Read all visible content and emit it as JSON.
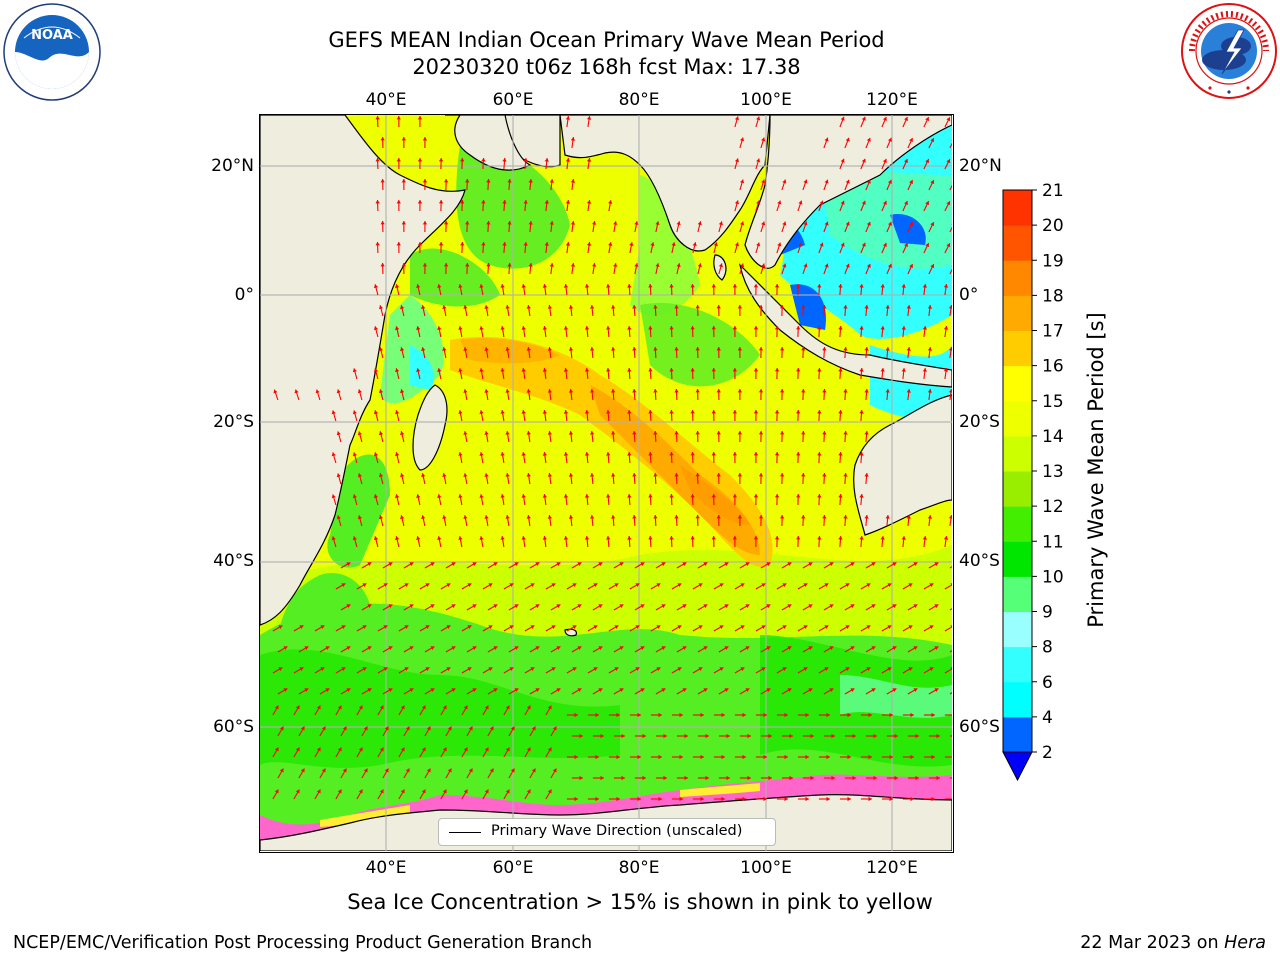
{
  "header": {
    "title_line1": "GEFS MEAN Indian Ocean Primary Wave Mean Period",
    "title_line2": "20230320 t06z 168h fcst   Max: 17.38"
  },
  "logos": {
    "left": {
      "icon": "noaa-logo-icon",
      "text": "NOAA",
      "ring_text": "NATIONAL OCEANIC AND ATMOSPHERIC ADMINISTRATION · U.S. DEPARTMENT OF COMMERCE"
    },
    "right": {
      "icon": "nws-logo-icon",
      "ring_text": "NATIONAL WEATHER SERVICE"
    }
  },
  "map": {
    "lon_ticks_top": [
      "40°E",
      "60°E",
      "80°E",
      "100°E",
      "120°E"
    ],
    "lon_ticks_bottom": [
      "40°E",
      "60°E",
      "80°E",
      "100°E",
      "120°E"
    ],
    "lat_ticks_left": [
      "20°N",
      "0°",
      "20°S",
      "40°S",
      "60°S"
    ],
    "lat_ticks_right": [
      "20°N",
      "0°",
      "20°S",
      "40°S",
      "60°S"
    ],
    "legend_label": "Primary Wave Direction (unscaled)",
    "land_color": "#efedde",
    "arrow_color": "#ff0000",
    "max_period": 17.38
  },
  "colorbar": {
    "label": "Primary Wave Mean Period [s]",
    "tick_labels": [
      "2",
      "4",
      "6",
      "8",
      "9",
      "10",
      "11",
      "12",
      "13",
      "14",
      "15",
      "16",
      "17",
      "18",
      "19",
      "20",
      "21"
    ],
    "colors": [
      "#0066ff",
      "#00ffff",
      "#33ffff",
      "#99ffff",
      "#55ff77",
      "#00e600",
      "#44ee00",
      "#99ee00",
      "#ccff00",
      "#eeff00",
      "#ffff00",
      "#ffcc00",
      "#ffaa00",
      "#ff8800",
      "#ff5500",
      "#ff3300"
    ],
    "under_color": "#0000ff"
  },
  "caption": "Sea Ice Concentration > 15% is shown in pink to yellow",
  "footer": {
    "left": "NCEP/EMC/Verification Post Processing Product Generation Branch",
    "right_prefix": "22 Mar 2023 on ",
    "right_italic": "Hera"
  }
}
